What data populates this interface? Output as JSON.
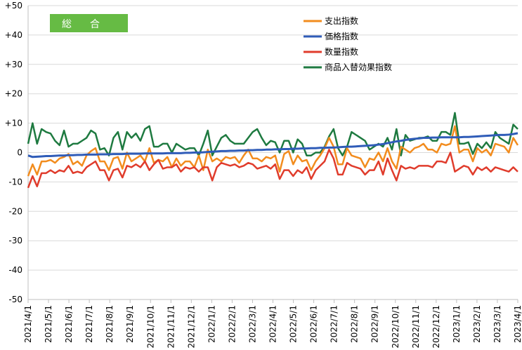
{
  "chart_data": {
    "type": "line",
    "title": "総　合",
    "title_box_color": "#66bb44",
    "ylim": [
      -50,
      50
    ],
    "yticks": [
      "+50",
      "+40",
      "+30",
      "+20",
      "+10",
      "0",
      "-10",
      "-20",
      "-30",
      "-40",
      "-50"
    ],
    "x_tick_labels": [
      "2021/4/1",
      "2021/5/1",
      "2021/6/1",
      "2021/7/1",
      "2021/8/1",
      "2021/9/1",
      "2021/10/1",
      "2021/11/1",
      "2021/12/1",
      "2022/1/1",
      "2022/2/1",
      "2022/3/1",
      "2022/4/1",
      "2022/5/1",
      "2022/6/1",
      "2022/7/1",
      "2022/8/1",
      "2022/9/1",
      "2022/10/1",
      "2022/11/1",
      "2022/12/1",
      "2023/1/1",
      "2023/2/1",
      "2023/3/1",
      "2023/4/1"
    ],
    "points_per_month": 4.4,
    "legend_position": "top-right",
    "series": [
      {
        "name": "支出指数",
        "color": "#f28c1e",
        "values": [
          -8,
          -4,
          -7.5,
          -3,
          -3,
          -2.5,
          -3.5,
          -2,
          -1.5,
          -0.5,
          -4,
          -3,
          -4.5,
          -1,
          0.5,
          1.5,
          -3,
          -3,
          -6,
          -2,
          -1.5,
          -5.5,
          0,
          -3,
          -2,
          -1,
          -3,
          1.5,
          -3.5,
          -2.5,
          -3,
          -1.5,
          -5,
          -2,
          -4.5,
          -3,
          -3,
          -5,
          -1,
          -6,
          1,
          -3,
          -2,
          -3,
          -1.5,
          -2,
          -1.5,
          -3.5,
          -1,
          1,
          -2,
          -2,
          -3,
          -1.5,
          -2,
          -1,
          -6.5,
          -0.5,
          0.5,
          -4,
          -1,
          -3,
          -2.5,
          -6,
          -3,
          -1,
          1.5,
          5,
          2,
          -4,
          -4,
          1.5,
          -1,
          -1.5,
          -2,
          -5,
          -2,
          -2.5,
          0,
          -3,
          1.5,
          -3,
          -5.5,
          2,
          1,
          0,
          1.5,
          2,
          3,
          1,
          1,
          0,
          3,
          2.5,
          3,
          9,
          0,
          1,
          1,
          -3,
          1.5,
          0,
          1,
          -1,
          3,
          2.5,
          2,
          0,
          5,
          2.5
        ],
        "label_x": "",
        "label_y": ""
      },
      {
        "name": "価格指数",
        "color": "#2f5cb8",
        "values": [
          -1,
          -1.5,
          -1.4,
          -1.3,
          -1.2,
          -1.2,
          -1.1,
          -1.0,
          -1.0,
          -0.9,
          -0.9,
          -0.8,
          -0.8,
          -0.7,
          -0.7,
          -0.7,
          -0.6,
          -0.6,
          -0.6,
          -0.5,
          -0.5,
          -0.5,
          -0.4,
          -0.4,
          -0.4,
          -0.4,
          -0.3,
          -0.3,
          -0.3,
          -0.3,
          -0.3,
          -0.2,
          -0.2,
          -0.2,
          -0.2,
          -0.1,
          -0.1,
          0,
          0,
          0.1,
          0.2,
          0.3,
          0.4,
          0.5,
          0.5,
          0.6,
          0.6,
          0.7,
          0.7,
          0.8,
          0.8,
          0.9,
          0.9,
          1.0,
          1.0,
          1.1,
          1.1,
          1.2,
          1.2,
          1.3,
          1.3,
          1.4,
          1.4,
          1.5,
          1.5,
          1.6,
          1.6,
          1.7,
          1.7,
          1.8,
          1.9,
          2.0,
          2.0,
          2.1,
          2.2,
          2.3,
          2.4,
          2.5,
          2.7,
          2.9,
          3.2,
          3.5,
          3.8,
          4.0,
          4.3,
          4.5,
          4.7,
          4.8,
          5.0,
          5.0,
          5.1,
          5.1,
          5.2,
          5.2,
          5.2,
          5.2,
          5.2,
          5.3,
          5.3,
          5.4,
          5.5,
          5.6,
          5.7,
          5.8,
          5.9,
          6.0,
          6.0,
          6.1,
          6.3,
          6.6
        ],
        "label_x": "",
        "label_y": ""
      },
      {
        "name": "数量指数",
        "color": "#e03c2c",
        "values": [
          -12,
          -8,
          -11.5,
          -7,
          -7,
          -6,
          -7,
          -6,
          -6.5,
          -4.5,
          -7,
          -6.5,
          -7,
          -5,
          -4,
          -3,
          -6,
          -6,
          -9.5,
          -6,
          -5.5,
          -8.5,
          -4.5,
          -5,
          -4,
          -5,
          -3,
          -6,
          -4,
          -2.5,
          -5.5,
          -5,
          -5,
          -4,
          -6.5,
          -5,
          -5.5,
          -5,
          -6.5,
          -5,
          -5,
          -9.5,
          -5,
          -3.5,
          -4,
          -4.5,
          -4,
          -5,
          -4.5,
          -3.5,
          -4,
          -5.5,
          -5,
          -4.5,
          -5.5,
          -4,
          -9,
          -6,
          -6,
          -8,
          -6,
          -7,
          -5,
          -9,
          -6,
          -4.5,
          -3,
          1,
          -2,
          -7.5,
          -7.5,
          -3.5,
          -4.5,
          -5,
          -5.5,
          -7.5,
          -6,
          -6,
          -3,
          -7.5,
          -2,
          -6,
          -9.5,
          -4.5,
          -5.5,
          -5,
          -5.5,
          -4.5,
          -4.5,
          -4.5,
          -5,
          -3,
          -3,
          -3.5,
          0,
          -6.5,
          -5.5,
          -4.5,
          -5,
          -7.5,
          -5,
          -6,
          -5,
          -6.5,
          -5,
          -5.5,
          -6,
          -6.5,
          -5,
          -6.5
        ],
        "label_x": "",
        "label_y": ""
      },
      {
        "name": "商品入替効果指数",
        "color": "#1e7a40",
        "values": [
          3,
          10,
          3,
          8,
          7,
          6.5,
          4,
          2.5,
          7.5,
          2,
          3,
          3,
          4,
          5,
          7.5,
          6.5,
          1,
          1.5,
          -1,
          5,
          7,
          1,
          7,
          5,
          6.5,
          4,
          8,
          9,
          2,
          2,
          3,
          3,
          0,
          3,
          2,
          1,
          1.5,
          1.5,
          -1,
          3,
          7.5,
          -1,
          2,
          5,
          6,
          4,
          3,
          3,
          3,
          5,
          7,
          8,
          5,
          2.5,
          4,
          3.5,
          0,
          4,
          4,
          0,
          4.5,
          3,
          -1,
          -1,
          0,
          0,
          2,
          5.5,
          8,
          1.5,
          -1,
          2,
          7,
          6,
          5,
          4,
          1,
          2,
          3,
          2,
          5,
          1,
          8,
          -1,
          6,
          4,
          4.5,
          5,
          5,
          5.5,
          4,
          4,
          7,
          7,
          6,
          13.5,
          3,
          3,
          3.5,
          -0.5,
          3,
          1.5,
          3.5,
          1.5,
          7,
          5,
          4,
          3,
          9.5,
          8
        ],
        "label_x": "",
        "label_y": ""
      }
    ]
  }
}
